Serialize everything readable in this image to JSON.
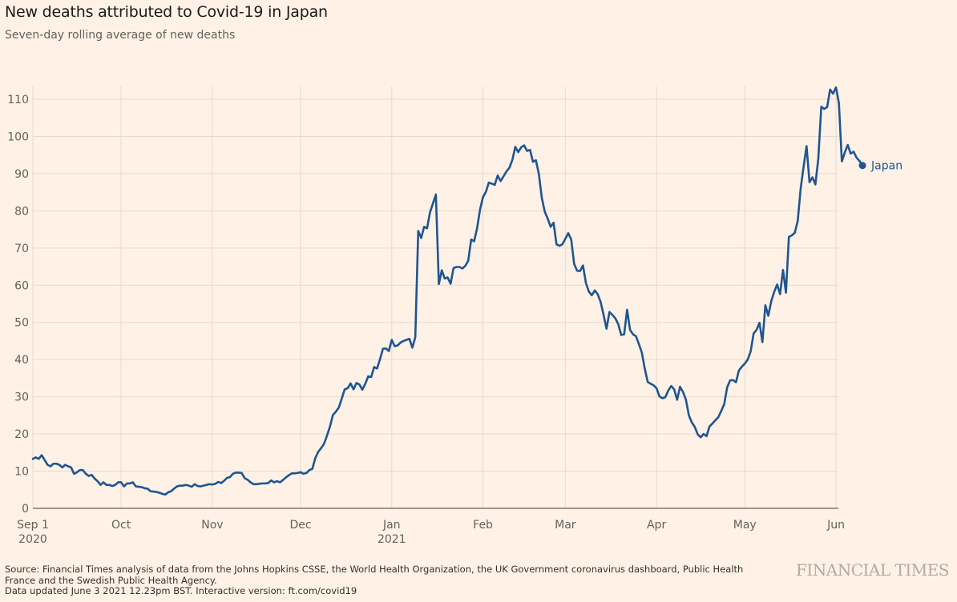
{
  "chart_data": {
    "type": "line",
    "title": "New deaths attributed to Covid-19 in Japan",
    "subtitle": "Seven-day rolling average of new deaths",
    "xlabel": "",
    "ylabel": "",
    "ylim": [
      0,
      110
    ],
    "yticks": [
      0,
      10,
      20,
      30,
      40,
      50,
      60,
      70,
      80,
      90,
      100,
      110
    ],
    "grid": true,
    "x_start_date": "2020-09-01",
    "x_end_date": "2021-06-02",
    "x_step": "1 day",
    "xticks": [
      {
        "day_index": 0,
        "label": "Sep 1",
        "sublabel": "2020"
      },
      {
        "day_index": 30,
        "label": "Oct",
        "sublabel": ""
      },
      {
        "day_index": 61,
        "label": "Nov",
        "sublabel": ""
      },
      {
        "day_index": 91,
        "label": "Dec",
        "sublabel": ""
      },
      {
        "day_index": 122,
        "label": "Jan",
        "sublabel": "2021"
      },
      {
        "day_index": 153,
        "label": "Feb",
        "sublabel": ""
      },
      {
        "day_index": 181,
        "label": "Mar",
        "sublabel": ""
      },
      {
        "day_index": 212,
        "label": "Apr",
        "sublabel": ""
      },
      {
        "day_index": 242,
        "label": "May",
        "sublabel": ""
      },
      {
        "day_index": 273,
        "label": "Jun",
        "sublabel": ""
      }
    ],
    "series": [
      {
        "name": "Japan",
        "color": "#1f5591",
        "end_label": "Japan",
        "values": [
          13.3,
          13.7,
          13.3,
          14.3,
          13.0,
          11.7,
          11.3,
          12.0,
          12.0,
          11.7,
          11.0,
          11.7,
          11.3,
          11.0,
          9.3,
          9.7,
          10.3,
          10.3,
          9.3,
          8.7,
          9.0,
          8.0,
          7.3,
          6.3,
          7.0,
          6.3,
          6.3,
          6.0,
          6.3,
          7.0,
          7.0,
          5.9,
          6.7,
          6.7,
          7.0,
          5.9,
          5.8,
          5.7,
          5.4,
          5.3,
          4.6,
          4.5,
          4.4,
          4.2,
          3.9,
          3.7,
          4.3,
          4.6,
          5.3,
          5.9,
          6.1,
          6.1,
          6.3,
          6.1,
          5.8,
          6.5,
          6.0,
          5.9,
          6.1,
          6.3,
          6.5,
          6.4,
          6.6,
          7.1,
          6.8,
          7.4,
          8.2,
          8.4,
          9.3,
          9.6,
          9.6,
          9.5,
          8.1,
          7.7,
          7.0,
          6.5,
          6.5,
          6.6,
          6.7,
          6.7,
          6.8,
          7.5,
          7.0,
          7.3,
          7.0,
          7.6,
          8.3,
          8.9,
          9.4,
          9.4,
          9.5,
          9.7,
          9.3,
          9.5,
          10.3,
          10.6,
          13.5,
          15.2,
          16.2,
          17.4,
          19.6,
          22.0,
          25.1,
          26.0,
          27.1,
          29.5,
          32.0,
          32.3,
          33.6,
          32.0,
          33.7,
          33.3,
          31.9,
          33.5,
          35.5,
          35.3,
          38.0,
          37.6,
          40.1,
          42.9,
          43.0,
          42.3,
          45.3,
          43.6,
          43.8,
          44.6,
          45.0,
          45.3,
          45.6,
          43.2,
          46.0,
          74.6,
          72.7,
          75.7,
          75.3,
          79.6,
          82.0,
          84.4,
          60.3,
          64.0,
          61.8,
          62.1,
          60.4,
          64.6,
          64.9,
          64.9,
          64.5,
          65.2,
          66.6,
          72.3,
          71.8,
          75.3,
          80.3,
          83.7,
          85.1,
          87.6,
          87.3,
          87.0,
          89.5,
          88.0,
          89.3,
          90.6,
          91.6,
          93.7,
          97.2,
          95.8,
          97.1,
          97.6,
          96.1,
          96.4,
          93.2,
          93.6,
          89.9,
          83.5,
          79.8,
          77.9,
          75.7,
          76.8,
          71.0,
          70.6,
          71.0,
          72.5,
          74.0,
          72.3,
          65.7,
          63.9,
          63.8,
          65.3,
          60.6,
          58.3,
          57.3,
          58.6,
          57.6,
          55.5,
          52.0,
          48.3,
          52.8,
          52.0,
          51.1,
          49.5,
          46.6,
          46.8,
          53.4,
          48.0,
          46.8,
          46.3,
          44.2,
          41.9,
          37.6,
          34.0,
          33.5,
          33.1,
          32.3,
          30.1,
          29.6,
          29.9,
          31.7,
          32.9,
          32.0,
          29.2,
          32.7,
          31.3,
          29.2,
          25.0,
          23.1,
          21.9,
          19.9,
          19.1,
          20.0,
          19.4,
          22.0,
          22.8,
          23.7,
          24.5,
          26.2,
          28.0,
          32.5,
          34.4,
          34.5,
          33.9,
          37.1,
          38.1,
          38.9,
          40.0,
          42.2,
          47.0,
          48.0,
          49.9,
          44.7,
          54.6,
          51.8,
          55.7,
          58.2,
          60.2,
          57.6,
          64.1,
          58.0,
          73.0,
          73.4,
          74.1,
          77.3,
          86.0,
          91.9,
          97.4,
          87.7,
          89.0,
          87.1,
          94.1,
          108.0,
          107.4,
          107.9,
          112.6,
          111.5,
          113.2,
          108.9,
          93.3,
          95.7,
          97.7,
          95.4,
          95.9,
          94.3,
          93.4,
          92.2
        ]
      }
    ]
  },
  "footer": {
    "source_line1": "Source: Financial Times analysis of data from the Johns Hopkins CSSE, the World Health Organization, the UK Government coronavirus dashboard, Public Health France and the Swedish Public Health Agency.",
    "source_line2": "Data updated June 3 2021 12.23pm BST. Interactive version: ft.com/covid19",
    "brand": "FINANCIAL TIMES"
  }
}
